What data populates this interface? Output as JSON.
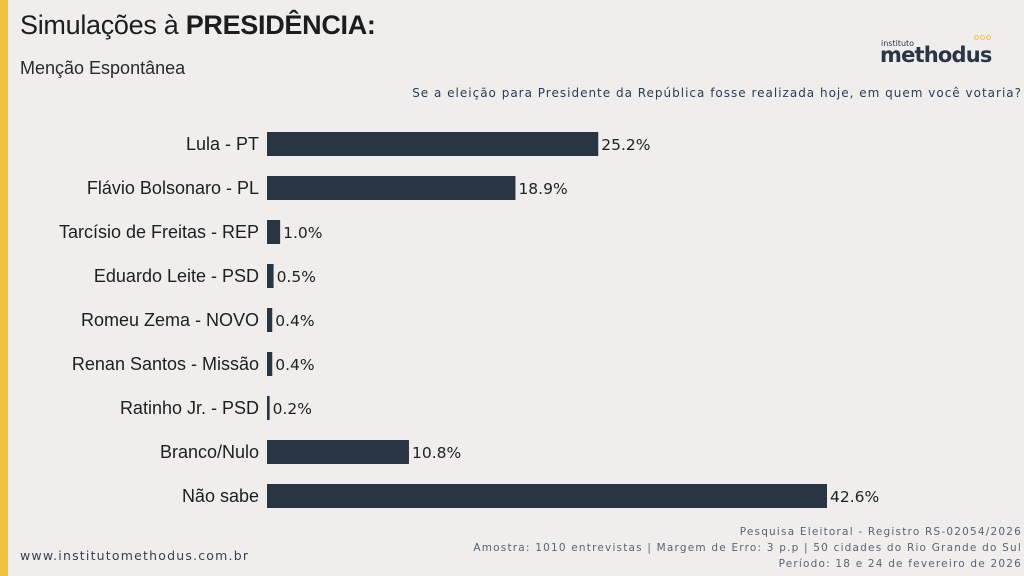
{
  "header": {
    "title_prefix": "Simulações à ",
    "title_bold": "PRESIDÊNCIA:",
    "subtitle": "Menção Espontânea",
    "question": "Se a eleição para Presidente da República fosse realizada hoje, em quem você votaria?"
  },
  "logo": {
    "small": "instituto",
    "big": "methodus"
  },
  "colors": {
    "bar": "#2a3544",
    "accent": "#f2c23f",
    "background": "#efeeed"
  },
  "chart_data": {
    "type": "bar",
    "orientation": "horizontal",
    "title": "Simulações à PRESIDÊNCIA: Menção Espontânea",
    "categories": [
      "Lula - PT",
      "Flávio Bolsonaro - PL",
      "Tarcísio de Freitas - REP",
      "Eduardo Leite - PSD",
      "Romeu Zema - NOVO",
      "Renan Santos - Missão",
      "Ratinho Jr. - PSD",
      "Branco/Nulo",
      "Não sabe"
    ],
    "values": [
      25.2,
      18.9,
      1.0,
      0.5,
      0.4,
      0.4,
      0.2,
      10.8,
      42.6
    ],
    "value_labels": [
      "25.2%",
      "18.9%",
      "1.0%",
      "0.5%",
      "0.4%",
      "0.4%",
      "0.2%",
      "10.8%",
      "42.6%"
    ],
    "unit": "%",
    "xlabel": "",
    "ylabel": "",
    "xlim": [
      0,
      42.6
    ],
    "grid": false,
    "legend": "none"
  },
  "footer": {
    "url": "www.institutomethodus.com.br",
    "lines": [
      "Pesquisa Eleitoral - Registro RS-02054/2026",
      "Amostra: 1010 entrevistas | Margem de Erro: 3 p.p | 50 cidades do Rio Grande do Sul",
      "Período: 18 e 24 de fevereiro de 2026"
    ]
  }
}
